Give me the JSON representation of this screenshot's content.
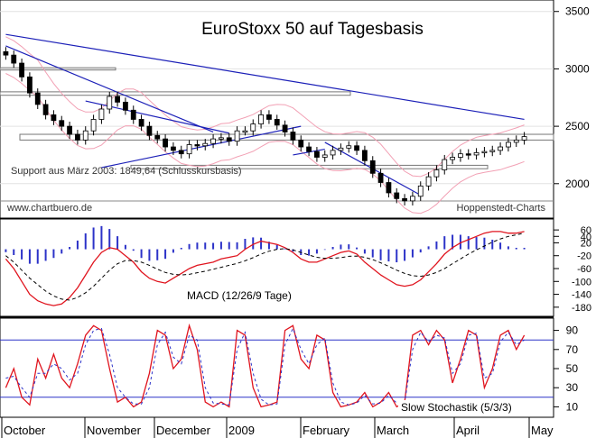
{
  "chart_data": [
    {
      "type": "candlestick",
      "title": "EuroStoxx 50 auf Tagesbasis",
      "ylim": [
        1700,
        3600
      ],
      "yticks": [
        2000,
        2500,
        3000,
        3500
      ],
      "ytick_labels": [
        "2000",
        "2500",
        "3000",
        "3500"
      ],
      "x_months": [
        "October",
        "November",
        "December",
        "2009",
        "February",
        "March",
        "April",
        "May"
      ],
      "closes": [
        3120,
        3050,
        2930,
        2790,
        2690,
        2600,
        2550,
        2500,
        2430,
        2380,
        2460,
        2560,
        2650,
        2760,
        2710,
        2640,
        2560,
        2500,
        2420,
        2390,
        2320,
        2290,
        2260,
        2340,
        2330,
        2350,
        2390,
        2400,
        2370,
        2460,
        2460,
        2520,
        2600,
        2560,
        2510,
        2450,
        2380,
        2320,
        2280,
        2230,
        2250,
        2290,
        2310,
        2330,
        2290,
        2200,
        2090,
        2010,
        1920,
        1870,
        1850,
        1890,
        1980,
        2060,
        2120,
        2210,
        2230,
        2260,
        2250,
        2270,
        2280,
        2290,
        2320,
        2360,
        2380,
        2410
      ],
      "annotations": [
        "Support aus März 2003: 1849,64 (Schlusskursbasis)",
        "www.chartbuero.de",
        "Hoppenstedt-Charts"
      ]
    },
    {
      "type": "line",
      "title": "MACD (12/26/9 Tage)",
      "ylim": [
        -200,
        80
      ],
      "yticks": [
        60,
        40,
        20,
        -20,
        -60,
        -100,
        -140,
        -180
      ],
      "ytick_labels": [
        "60",
        "40",
        "20",
        "-20",
        "-60",
        "-100",
        "-140",
        "-180"
      ],
      "series": [
        {
          "values": [
            -30,
            -60,
            -100,
            -140,
            -160,
            -170,
            -175,
            -170,
            -150,
            -120,
            -80,
            -40,
            -10,
            5,
            0,
            -20,
            -40,
            -70,
            -90,
            -100,
            -105,
            -90,
            -75,
            -60,
            -50,
            -45,
            -40,
            -30,
            -25,
            -20,
            0,
            15,
            25,
            20,
            15,
            5,
            -10,
            -30,
            -40,
            -40,
            -30,
            -20,
            -10,
            -5,
            -15,
            -40,
            -60,
            -80,
            -95,
            -110,
            -115,
            -110,
            -95,
            -70,
            -45,
            -15,
            5,
            20,
            30,
            40,
            50,
            55,
            55,
            50,
            50,
            55
          ]
        },
        {
          "values": [
            -20,
            -40,
            -65,
            -90,
            -110,
            -130,
            -145,
            -155,
            -158,
            -150,
            -135,
            -115,
            -90,
            -65,
            -45,
            -35,
            -35,
            -40,
            -50,
            -62,
            -72,
            -78,
            -80,
            -78,
            -73,
            -68,
            -62,
            -56,
            -50,
            -44,
            -36,
            -26,
            -15,
            -6,
            0,
            2,
            -2,
            -10,
            -18,
            -25,
            -28,
            -28,
            -26,
            -22,
            -21,
            -25,
            -32,
            -42,
            -53,
            -65,
            -75,
            -82,
            -84,
            -80,
            -72,
            -60,
            -45,
            -30,
            -15,
            -2,
            10,
            22,
            32,
            40,
            45,
            50
          ]
        }
      ]
    },
    {
      "type": "line",
      "title": "Slow Stochastik (5/3/3)",
      "ylim": [
        0,
        100
      ],
      "yticks": [
        90,
        70,
        50,
        30,
        10
      ],
      "ytick_labels": [
        "90",
        "70",
        "50",
        "30",
        "10"
      ],
      "levels": [
        80,
        20
      ],
      "series": [
        {
          "values": [
            30,
            50,
            20,
            12,
            60,
            40,
            65,
            40,
            30,
            55,
            85,
            95,
            90,
            50,
            15,
            20,
            10,
            15,
            45,
            90,
            85,
            50,
            60,
            95,
            70,
            15,
            10,
            15,
            10,
            90,
            85,
            30,
            10,
            12,
            15,
            90,
            95,
            60,
            50,
            85,
            80,
            25,
            10,
            12,
            15,
            25,
            10,
            15,
            25,
            10,
            15,
            85,
            90,
            75,
            90,
            80,
            35,
            60,
            90,
            85,
            30,
            50,
            85,
            90,
            70,
            85
          ]
        },
        {
          "values": [
            40,
            42,
            30,
            20,
            45,
            45,
            55,
            50,
            38,
            45,
            75,
            90,
            92,
            65,
            30,
            20,
            13,
            13,
            30,
            75,
            88,
            62,
            55,
            85,
            80,
            30,
            14,
            13,
            12,
            70,
            88,
            45,
            18,
            12,
            13,
            75,
            92,
            70,
            55,
            75,
            82,
            35,
            15,
            12,
            14,
            22,
            13,
            14,
            22,
            14,
            14,
            70,
            88,
            78,
            85,
            82,
            45,
            55,
            85,
            87,
            40,
            45,
            78,
            88,
            75,
            80
          ]
        }
      ]
    }
  ]
}
